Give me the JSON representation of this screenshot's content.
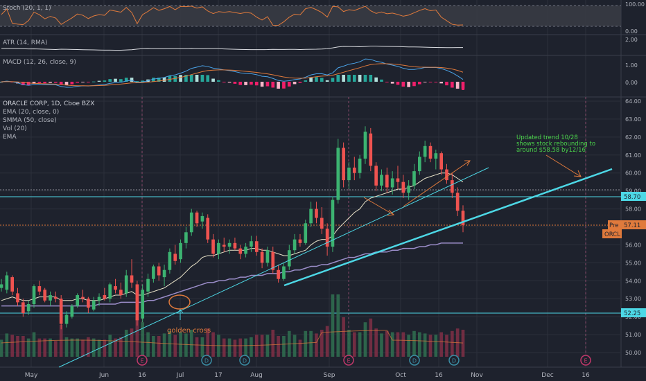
{
  "colors": {
    "background": "#1e222d",
    "grid": "#2c303c",
    "text": "#b2b5be",
    "up": "#26a69a",
    "up_candle": "#3cb371",
    "down": "#ef5350",
    "ema": "#e8e2c8",
    "smma": "#9b8dc9",
    "stoch": "#e07a3c",
    "macd_line": "#4aa3e8",
    "signal_line": "#e07a3c",
    "trendline": "#4dd8e6",
    "annotation": "#e07a3c",
    "note": "#4bd34b",
    "price_label": "#e07a3c",
    "dashed_price": "#e07a3c"
  },
  "panes": {
    "stoch": {
      "label": "Stoch (20, 1, 1)",
      "ticks": [
        "100.00",
        "0.00"
      ]
    },
    "atr": {
      "label": "ATR (14, RMA)",
      "ticks": [
        "2.00"
      ]
    },
    "macd": {
      "label": "MACD (12, 26, close, 9)",
      "ticks": [
        "1.00",
        "0.00"
      ]
    },
    "main": {
      "title": "ORACLE CORP, 1D, Cboe BZX",
      "legend": [
        "EMA (20, close, 0)",
        "SMMA (50, close)",
        "Vol (20)",
        "EMA"
      ]
    }
  },
  "price_labels": {
    "upper": "58.70",
    "lower": "52.25",
    "pre_tag": "Pre",
    "pre_value": "57.11",
    "symbol": "ORCL"
  },
  "annotations": {
    "golden_cross": "golden cross",
    "note_line1": "Updated trend 10/28",
    "note_line2": "shows stock rebounding to",
    "note_line3": "around $58.58 by12/16"
  },
  "event_markers": [
    "E",
    "D",
    "D",
    "E",
    "D",
    "D",
    "E"
  ],
  "chart_data": {
    "type": "candlestick",
    "title": "ORACLE CORP, 1D, Cboe BZX",
    "x_tick_labels": [
      "May",
      "Jun",
      "16",
      "Jul",
      "17",
      "Aug",
      "Sep",
      "Oct",
      "16",
      "Nov",
      "Dec",
      "16"
    ],
    "y_tick_labels": [
      "64.00",
      "63.00",
      "62.00",
      "61.00",
      "60.00",
      "59.00",
      "58.00",
      "57.00",
      "56.00",
      "55.00",
      "54.00",
      "53.00",
      "52.00",
      "51.00",
      "50.00"
    ],
    "ylim": [
      49.5,
      64.2
    ],
    "grid": true,
    "series": [
      {
        "name": "EMA (20, close, 0)",
        "type": "line"
      },
      {
        "name": "SMMA (50, close)",
        "type": "line"
      },
      {
        "name": "Vol (20)",
        "type": "bar"
      }
    ],
    "candles": [
      [
        53.6,
        54.1,
        53.4,
        53.8
      ],
      [
        53.5,
        54.5,
        53.3,
        54.3
      ],
      [
        54.2,
        54.3,
        53.2,
        53.4
      ],
      [
        53.3,
        53.6,
        52.6,
        52.8
      ],
      [
        52.8,
        53.0,
        52.0,
        52.2
      ],
      [
        52.3,
        52.9,
        52.1,
        52.7
      ],
      [
        52.7,
        53.8,
        52.5,
        53.7
      ],
      [
        53.7,
        54.0,
        53.2,
        53.4
      ],
      [
        53.5,
        53.6,
        52.8,
        52.9
      ],
      [
        52.9,
        53.4,
        52.6,
        53.2
      ],
      [
        53.1,
        53.4,
        52.8,
        53.0
      ],
      [
        53.0,
        53.2,
        51.3,
        51.6
      ],
      [
        51.6,
        52.3,
        51.4,
        52.1
      ],
      [
        52.0,
        52.7,
        51.9,
        52.6
      ],
      [
        52.6,
        53.3,
        52.5,
        53.2
      ],
      [
        53.1,
        53.5,
        52.8,
        53.0
      ],
      [
        53.0,
        53.1,
        52.2,
        52.5
      ],
      [
        52.4,
        53.1,
        52.3,
        52.9
      ],
      [
        52.9,
        53.3,
        52.6,
        53.1
      ],
      [
        53.2,
        53.6,
        52.9,
        53.0
      ],
      [
        53.0,
        53.9,
        52.8,
        53.8
      ],
      [
        53.7,
        54.1,
        53.3,
        53.5
      ],
      [
        53.5,
        53.9,
        53.0,
        53.2
      ],
      [
        53.3,
        54.6,
        53.1,
        54.3
      ],
      [
        54.3,
        55.2,
        53.6,
        53.9
      ],
      [
        53.8,
        54.0,
        51.5,
        51.8
      ],
      [
        51.9,
        53.8,
        51.7,
        53.5
      ],
      [
        53.4,
        54.4,
        53.1,
        54.1
      ],
      [
        54.1,
        54.9,
        53.9,
        54.8
      ],
      [
        54.8,
        55.0,
        54.0,
        54.3
      ],
      [
        54.2,
        54.9,
        53.7,
        54.6
      ],
      [
        54.6,
        55.8,
        54.4,
        55.6
      ],
      [
        55.5,
        56.0,
        54.9,
        55.1
      ],
      [
        55.2,
        56.3,
        55.0,
        56.1
      ],
      [
        56.1,
        57.0,
        55.8,
        56.7
      ],
      [
        56.7,
        58.0,
        56.5,
        57.8
      ],
      [
        57.8,
        57.9,
        57.0,
        57.2
      ],
      [
        57.3,
        57.8,
        56.9,
        57.6
      ],
      [
        57.5,
        57.7,
        56.1,
        56.3
      ],
      [
        56.3,
        56.6,
        55.3,
        55.5
      ],
      [
        55.5,
        56.3,
        55.2,
        56.1
      ],
      [
        56.0,
        56.4,
        55.6,
        55.9
      ],
      [
        55.9,
        56.3,
        55.5,
        56.1
      ],
      [
        56.1,
        56.4,
        55.7,
        55.8
      ],
      [
        55.8,
        56.0,
        55.2,
        55.5
      ],
      [
        55.5,
        56.1,
        55.3,
        55.9
      ],
      [
        55.9,
        56.5,
        55.6,
        56.2
      ],
      [
        56.2,
        56.5,
        55.4,
        55.6
      ],
      [
        55.6,
        55.8,
        54.7,
        55.0
      ],
      [
        55.0,
        55.9,
        54.8,
        55.7
      ],
      [
        55.6,
        55.9,
        54.4,
        54.6
      ],
      [
        54.6,
        54.9,
        53.9,
        54.1
      ],
      [
        54.1,
        55.0,
        54.0,
        54.8
      ],
      [
        54.8,
        56.0,
        54.6,
        55.7
      ],
      [
        55.7,
        56.6,
        55.5,
        56.3
      ],
      [
        56.3,
        56.6,
        55.9,
        56.1
      ],
      [
        56.1,
        57.4,
        56.0,
        57.2
      ],
      [
        57.2,
        58.4,
        57.0,
        58.0
      ],
      [
        58.0,
        58.4,
        57.2,
        57.5
      ],
      [
        57.5,
        58.1,
        56.6,
        56.9
      ],
      [
        56.9,
        57.2,
        55.4,
        55.9
      ],
      [
        55.9,
        58.7,
        55.6,
        58.5
      ],
      [
        58.5,
        61.9,
        58.3,
        61.4
      ],
      [
        61.4,
        61.7,
        59.2,
        59.6
      ],
      [
        59.6,
        60.6,
        59.1,
        60.3
      ],
      [
        60.3,
        60.9,
        59.6,
        60.0
      ],
      [
        60.0,
        61.0,
        59.7,
        60.8
      ],
      [
        60.8,
        62.6,
        60.5,
        62.3
      ],
      [
        62.2,
        62.5,
        60.1,
        60.4
      ],
      [
        60.4,
        60.6,
        59.0,
        59.3
      ],
      [
        59.3,
        60.2,
        59.0,
        59.9
      ],
      [
        59.9,
        60.3,
        58.9,
        59.2
      ],
      [
        59.2,
        60.1,
        58.8,
        59.7
      ],
      [
        59.7,
        60.4,
        59.1,
        59.5
      ],
      [
        59.5,
        59.9,
        58.6,
        58.9
      ],
      [
        58.9,
        59.6,
        58.5,
        59.3
      ],
      [
        59.3,
        60.5,
        59.1,
        60.1
      ],
      [
        60.1,
        61.2,
        59.9,
        60.9
      ],
      [
        60.9,
        61.8,
        60.6,
        61.5
      ],
      [
        61.5,
        61.7,
        60.6,
        60.8
      ],
      [
        60.8,
        61.3,
        60.2,
        61.1
      ],
      [
        61.1,
        61.2,
        59.9,
        60.2
      ],
      [
        60.2,
        60.5,
        59.4,
        59.6
      ],
      [
        59.6,
        60.0,
        58.6,
        58.9
      ],
      [
        58.9,
        59.2,
        57.6,
        57.9
      ],
      [
        57.9,
        58.2,
        56.7,
        57.1
      ]
    ],
    "ema20": [
      52.9,
      53.0,
      53.1,
      53.0,
      52.9,
      52.9,
      53.0,
      53.1,
      53.1,
      53.1,
      53.1,
      52.9,
      52.9,
      52.9,
      53.0,
      53.0,
      52.9,
      52.9,
      52.9,
      53.0,
      53.1,
      53.2,
      53.2,
      53.3,
      53.4,
      53.2,
      53.2,
      53.3,
      53.4,
      53.5,
      53.6,
      53.8,
      54.0,
      54.2,
      54.5,
      54.8,
      55.0,
      55.3,
      55.4,
      55.4,
      55.5,
      55.6,
      55.7,
      55.7,
      55.7,
      55.7,
      55.8,
      55.8,
      55.7,
      55.7,
      55.6,
      55.5,
      55.4,
      55.4,
      55.5,
      55.6,
      55.7,
      56.0,
      56.2,
      56.3,
      56.3,
      56.5,
      56.9,
      57.2,
      57.5,
      57.8,
      58.0,
      58.4,
      58.6,
      58.7,
      58.8,
      58.9,
      59.0,
      59.1,
      59.1,
      59.2,
      59.3,
      59.5,
      59.7,
      59.8,
      59.9,
      60.0,
      60.0,
      59.9,
      59.7,
      59.5
    ],
    "smma50": [
      52.6,
      52.6,
      52.6,
      52.6,
      52.6,
      52.6,
      52.6,
      52.6,
      52.6,
      52.6,
      52.6,
      52.6,
      52.6,
      52.6,
      52.6,
      52.6,
      52.6,
      52.6,
      52.7,
      52.7,
      52.7,
      52.7,
      52.8,
      52.8,
      52.8,
      52.8,
      52.8,
      52.9,
      52.9,
      53.0,
      53.1,
      53.2,
      53.3,
      53.4,
      53.5,
      53.6,
      53.7,
      53.8,
      53.9,
      53.9,
      54.0,
      54.0,
      54.1,
      54.1,
      54.2,
      54.2,
      54.3,
      54.3,
      54.3,
      54.4,
      54.4,
      54.4,
      54.5,
      54.5,
      54.6,
      54.6,
      54.7,
      54.8,
      54.8,
      54.9,
      54.9,
      55.0,
      55.1,
      55.2,
      55.3,
      55.3,
      55.4,
      55.5,
      55.5,
      55.6,
      55.6,
      55.6,
      55.7,
      55.7,
      55.8,
      55.8,
      55.8,
      55.9,
      55.9,
      56.0,
      56.0,
      56.1,
      56.1,
      56.1,
      56.1,
      56.1
    ]
  }
}
